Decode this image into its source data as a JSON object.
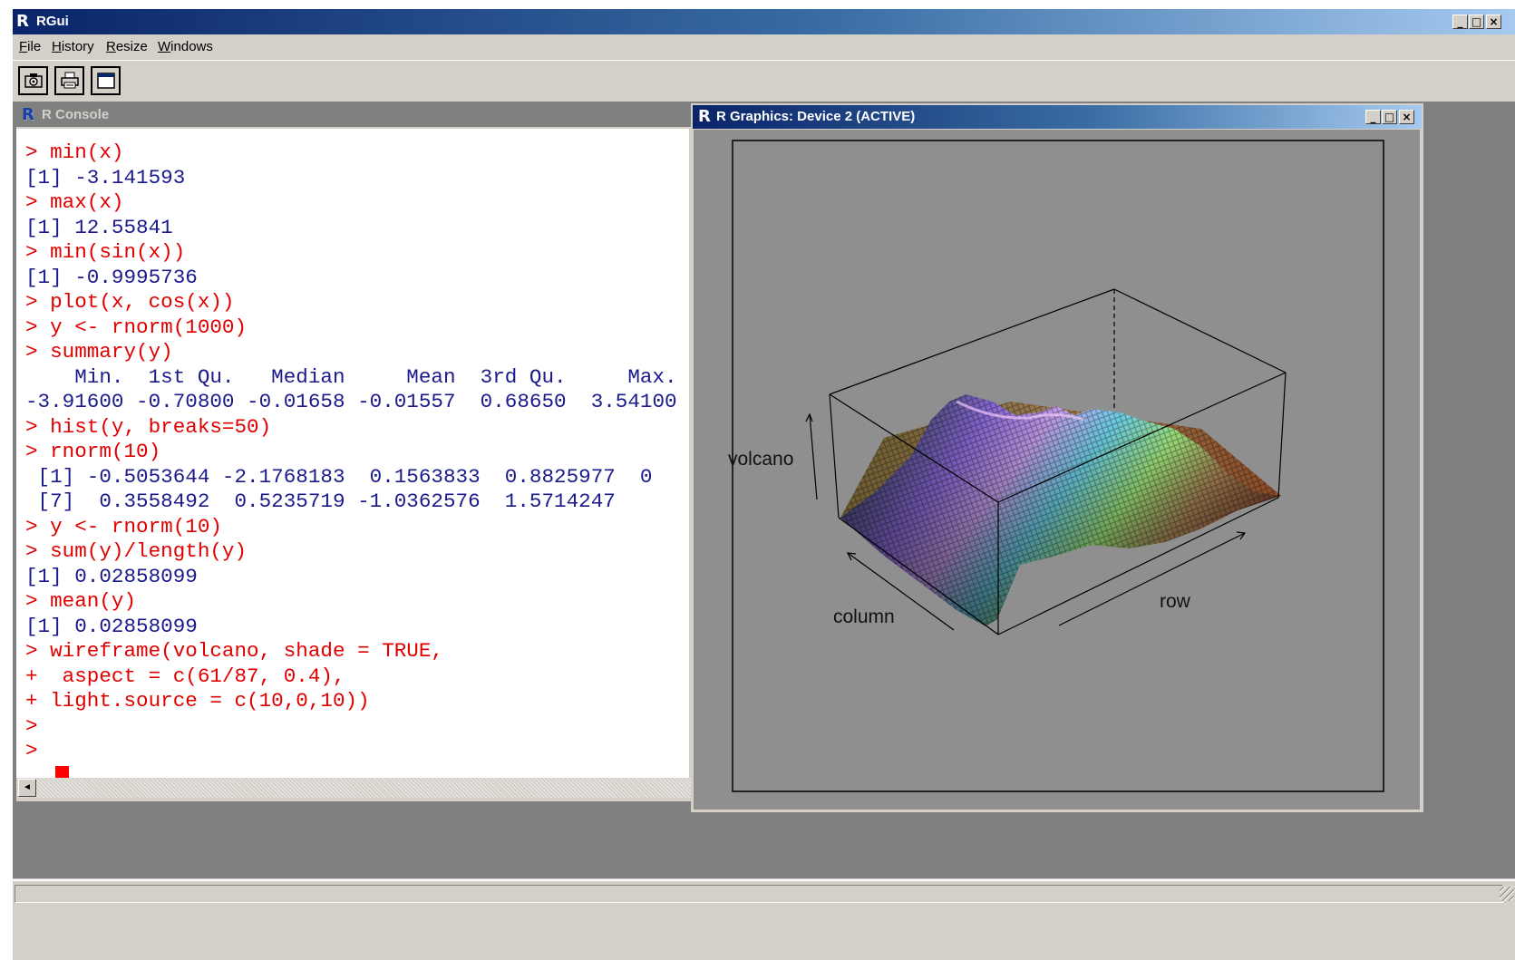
{
  "app": {
    "title": "RGui",
    "logo": "R",
    "caption_buttons": {
      "minimize": "_",
      "maximize": "□",
      "close": "×"
    }
  },
  "menubar": {
    "items": [
      {
        "key": "F",
        "rest": "ile"
      },
      {
        "key": "H",
        "rest": "istory"
      },
      {
        "key": "R",
        "rest": "esize"
      },
      {
        "key": "W",
        "rest": "indows"
      }
    ]
  },
  "toolbar": {
    "buttons": [
      {
        "name": "copy-to-clipboard",
        "icon": "camera-icon"
      },
      {
        "name": "print",
        "icon": "printer-icon"
      },
      {
        "name": "window",
        "icon": "window-icon"
      }
    ]
  },
  "console": {
    "title": "R Console",
    "lines": [
      {
        "text": "> min(x)",
        "kind": "cmd"
      },
      {
        "text": "[1] -3.141593",
        "kind": "out"
      },
      {
        "text": "> max(x)",
        "kind": "cmd"
      },
      {
        "text": "[1] 12.55841",
        "kind": "out"
      },
      {
        "text": "> min(sin(x))",
        "kind": "cmd"
      },
      {
        "text": "[1] -0.9995736",
        "kind": "out"
      },
      {
        "text": "> plot(x, cos(x))",
        "kind": "cmd"
      },
      {
        "text": "> y <- rnorm(1000)",
        "kind": "cmd"
      },
      {
        "text": "> summary(y)",
        "kind": "cmd"
      },
      {
        "text": "    Min.  1st Qu.   Median     Mean  3rd Qu.     Max.",
        "kind": "out"
      },
      {
        "text": "-3.91600 -0.70800 -0.01658 -0.01557  0.68650  3.54100",
        "kind": "out"
      },
      {
        "text": "> hist(y, breaks=50)",
        "kind": "cmd"
      },
      {
        "text": "> rnorm(10)",
        "kind": "cmd"
      },
      {
        "text": " [1] -0.5053644 -2.1768183  0.1563833  0.8825977  0",
        "kind": "out"
      },
      {
        "text": " [7]  0.3558492  0.5235719 -1.0362576  1.5714247",
        "kind": "out"
      },
      {
        "text": "> y <- rnorm(10)",
        "kind": "cmd"
      },
      {
        "text": "> sum(y)/length(y)",
        "kind": "cmd"
      },
      {
        "text": "[1] 0.02858099",
        "kind": "out"
      },
      {
        "text": "> mean(y)",
        "kind": "cmd"
      },
      {
        "text": "[1] 0.02858099",
        "kind": "out"
      },
      {
        "text": "> wireframe(volcano, shade = TRUE,",
        "kind": "cmd"
      },
      {
        "text": "+  aspect = c(61/87, 0.4),",
        "kind": "cmd"
      },
      {
        "text": "+ light.source = c(10,0,10))",
        "kind": "cmd"
      },
      {
        "text": ">",
        "kind": "cmd"
      },
      {
        "text": ">",
        "kind": "cmd"
      }
    ],
    "scroll_left_icon": "◄"
  },
  "graphics": {
    "title": "R Graphics: Device 2 (ACTIVE)",
    "plot": {
      "type": "3d-wireframe-shaded",
      "zlabel": "volcano",
      "xlabel": "row",
      "ylabel": "column"
    }
  },
  "colors": {
    "command": "#e00000",
    "output": "#1a1a8c",
    "cursor": "#ff0000",
    "title_active": "#0a246a",
    "plot_background": "#8f8f8f"
  }
}
